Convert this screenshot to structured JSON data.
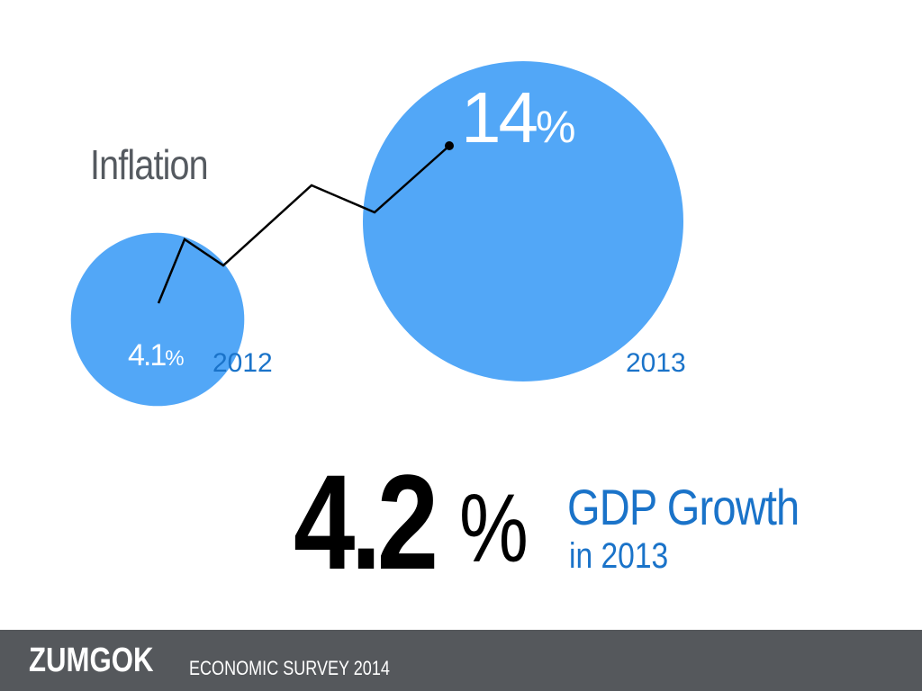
{
  "colors": {
    "bubble": "#52a7f7",
    "year_label": "#1a73c9",
    "line": "#000000",
    "footer_bg": "#55585c"
  },
  "inflation": {
    "title": "Inflation"
  },
  "chart_data": {
    "type": "bubble",
    "title": "Inflation",
    "x_labels": [
      "2012",
      "2013"
    ],
    "series": [
      {
        "name": "Inflation",
        "points": [
          {
            "year": "2012",
            "value": 4.1,
            "value_label": "4.1",
            "unit": "%"
          },
          {
            "year": "2013",
            "value": 14,
            "value_label": "14",
            "unit": "%"
          }
        ]
      }
    ],
    "trend_line": true
  },
  "gdp": {
    "value": "4.2",
    "unit": "%",
    "label_strong": "GDP",
    "label_rest": "Growth",
    "sub": "in 2013"
  },
  "footer": {
    "brand": "ZUMGOK",
    "subtitle": "ECONOMIC SURVEY 2014"
  }
}
